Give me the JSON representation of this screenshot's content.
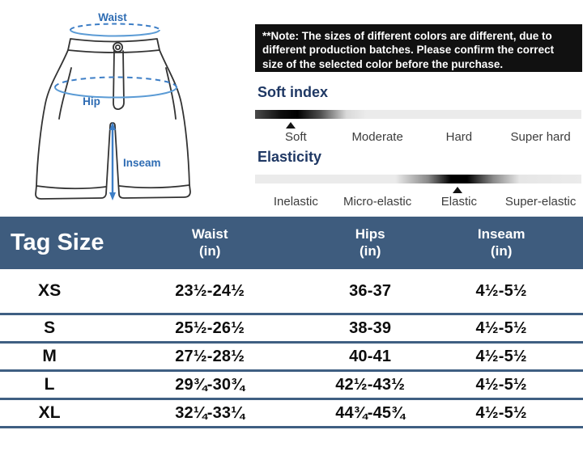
{
  "colors": {
    "table_header_bg": "#3e5c7e",
    "row_divider": "#3f5f82",
    "note_bg": "#111111",
    "scale_title": "#1f3864",
    "diagram_label_blue": "#2e6cb3",
    "diagram_line_blue": "#3d7ec6",
    "outline_gray": "#333333"
  },
  "diagram": {
    "waist_label": "Waist",
    "hip_label": "Hip",
    "inseam_label": "Inseam"
  },
  "note": {
    "text": "**Note: The sizes of different colors are different, due to different production batches. Please confirm the correct size of the selected color before the purchase."
  },
  "scales": [
    {
      "title": "Soft index",
      "labels": [
        "Soft",
        "Moderate",
        "Hard",
        "Super hard"
      ],
      "selected": "Soft",
      "marker_pct": 11
    },
    {
      "title": "Elasticity",
      "labels": [
        "Inelastic",
        "Micro-elastic",
        "Elastic",
        "Super-elastic"
      ],
      "selected": "Elastic",
      "marker_pct": 62
    }
  ],
  "size_table": {
    "tag_size_label": "Tag Size",
    "columns": [
      {
        "label": "Waist",
        "unit": "(in)"
      },
      {
        "label": "Hips",
        "unit": "(in)"
      },
      {
        "label": "Inseam",
        "unit": "(in)"
      }
    ],
    "rows": [
      {
        "size": "XS",
        "waist": "23½-24½",
        "hips": "36-37",
        "inseam": "4½-5½"
      },
      {
        "size": "S",
        "waist": "25½-26½",
        "hips": "38-39",
        "inseam": "4½-5½"
      },
      {
        "size": "M",
        "waist": "27½-28½",
        "hips": "40-41",
        "inseam": "4½-5½"
      },
      {
        "size": "L",
        "waist": "29¾-30¾",
        "hips": "42½-43½",
        "inseam": "4½-5½"
      },
      {
        "size": "XL",
        "waist": "32¼-33¼",
        "hips": "44¾-45¾",
        "inseam": "4½-5½"
      }
    ]
  }
}
